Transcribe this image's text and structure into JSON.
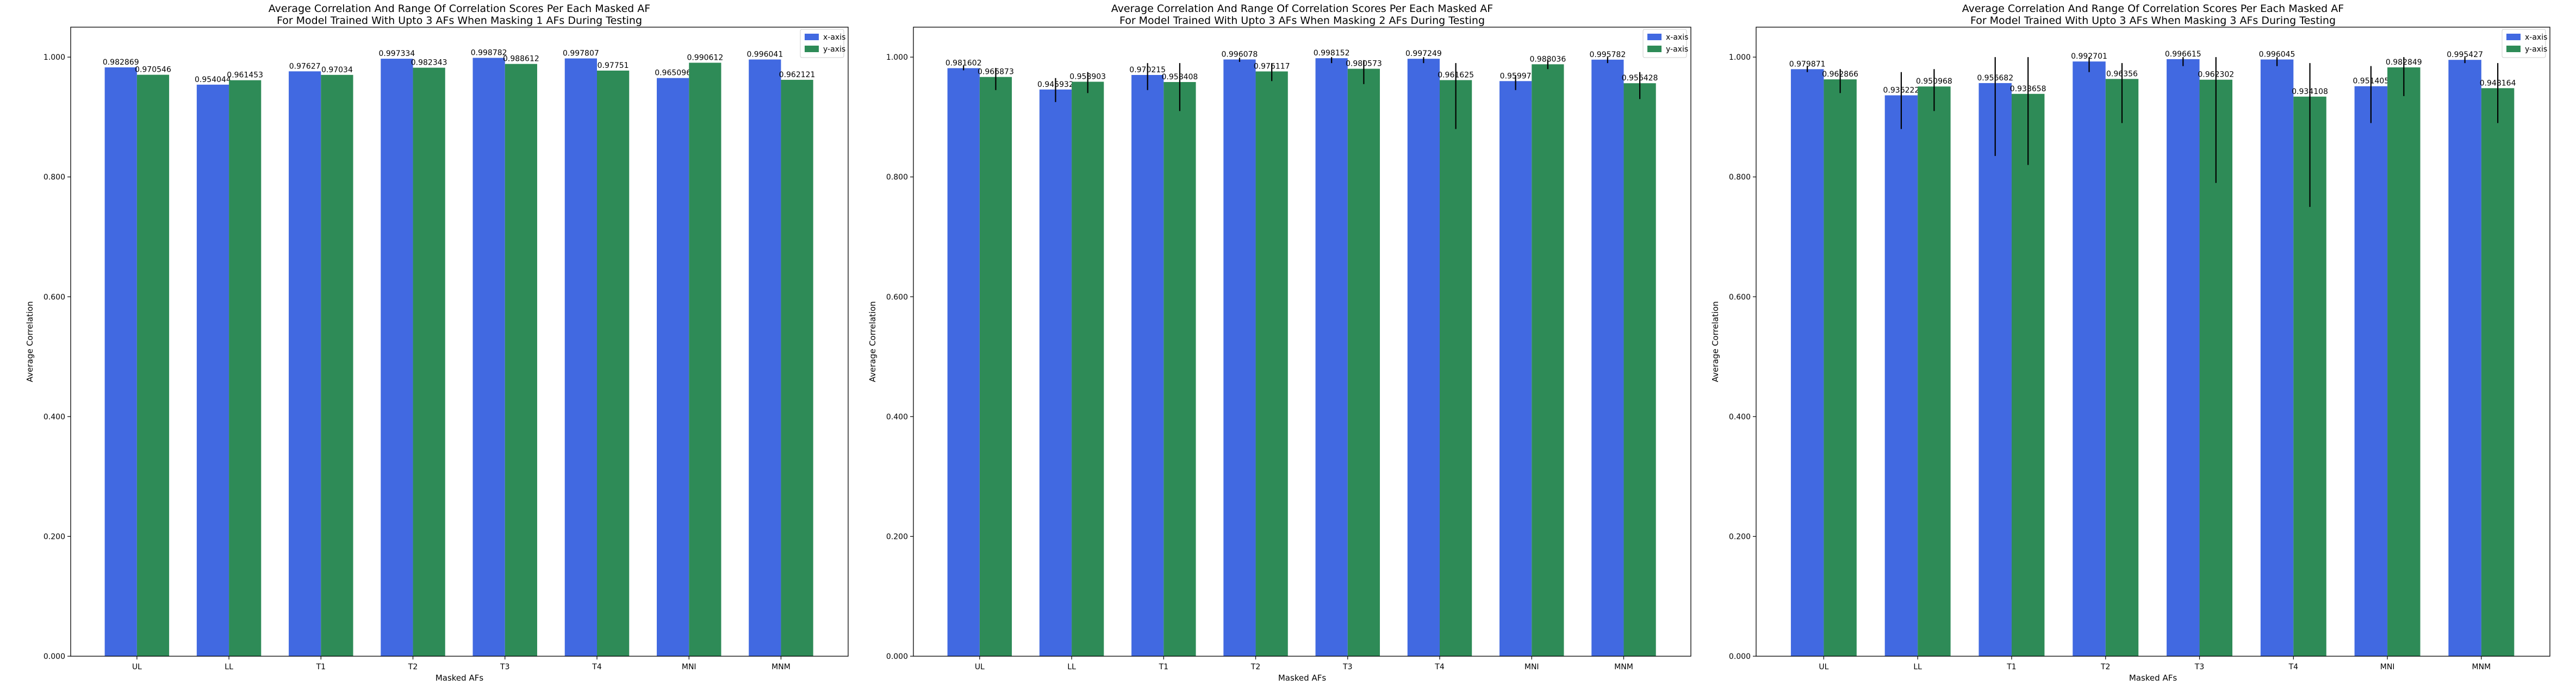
{
  "colors": {
    "x_axis": "#4169E1",
    "y_axis": "#2E8B57",
    "error_bar": "#000000"
  },
  "chart_data": [
    {
      "type": "bar",
      "title": "Average Correlation And Range Of Correlation Scores Per Each Masked AF",
      "subtitle": "For Model Trained With Upto 3 AFs When Masking 1 AFs During Testing",
      "xlabel": "Masked AFs",
      "ylabel": "Average Correlation",
      "categories": [
        "UL",
        "LL",
        "T1",
        "T2",
        "T3",
        "T4",
        "MNI",
        "MNM"
      ],
      "ylim": [
        0,
        1.05
      ],
      "yticks": [
        "0.000",
        "0.200",
        "0.400",
        "0.600",
        "0.800",
        "1.000"
      ],
      "legend_position": "top-right",
      "grid": false,
      "series": [
        {
          "name": "x-axis",
          "values": [
            0.982869,
            0.954044,
            0.97627,
            0.997334,
            0.998782,
            0.997807,
            0.965096,
            0.996041
          ],
          "labels": [
            "0.982869",
            "0.954044",
            "0.97627",
            "0.997334",
            "0.998782",
            "0.997807",
            "0.965096",
            "0.996041"
          ],
          "error_low": [
            0.982869,
            0.954044,
            0.97627,
            0.997334,
            0.998782,
            0.997807,
            0.965096,
            0.996041
          ],
          "error_high": [
            0.982869,
            0.954044,
            0.97627,
            0.997334,
            0.998782,
            0.997807,
            0.965096,
            0.996041
          ]
        },
        {
          "name": "y-axis",
          "values": [
            0.970546,
            0.961453,
            0.97034,
            0.982343,
            0.988612,
            0.97751,
            0.990612,
            0.962121
          ],
          "labels": [
            "0.970546",
            "0.961453",
            "0.97034",
            "0.982343",
            "0.988612",
            "0.97751",
            "0.990612",
            "0.962121"
          ],
          "error_low": [
            0.970546,
            0.961453,
            0.97034,
            0.982343,
            0.988612,
            0.97751,
            0.990612,
            0.962121
          ],
          "error_high": [
            0.970546,
            0.961453,
            0.97034,
            0.982343,
            0.988612,
            0.97751,
            0.990612,
            0.962121
          ]
        }
      ]
    },
    {
      "type": "bar",
      "title": "Average Correlation And Range Of Correlation Scores Per Each Masked AF",
      "subtitle": "For Model Trained With Upto 3 AFs When Masking 2 AFs During Testing",
      "xlabel": "Masked AFs",
      "ylabel": "Average Correlation",
      "categories": [
        "UL",
        "LL",
        "T1",
        "T2",
        "T3",
        "T4",
        "MNI",
        "MNM"
      ],
      "ylim": [
        0,
        1.05
      ],
      "yticks": [
        "0.000",
        "0.200",
        "0.400",
        "0.600",
        "0.800",
        "1.000"
      ],
      "legend_position": "top-right",
      "grid": false,
      "series": [
        {
          "name": "x-axis",
          "values": [
            0.981602,
            0.945932,
            0.970215,
            0.996078,
            0.998152,
            0.997249,
            0.95997,
            0.995782
          ],
          "labels": [
            "0.981602",
            "0.945932",
            "0.970215",
            "0.996078",
            "0.998152",
            "0.997249",
            "0.95997",
            "0.995782"
          ],
          "error_low": [
            0.978,
            0.925,
            0.945,
            0.992,
            0.99,
            0.99,
            0.945,
            0.99
          ],
          "error_high": [
            0.986,
            0.965,
            0.99,
            0.999,
            1.0,
            1.0,
            0.97,
            1.0
          ]
        },
        {
          "name": "y-axis",
          "values": [
            0.966873,
            0.958903,
            0.958408,
            0.976117,
            0.980573,
            0.961625,
            0.988036,
            0.956428
          ],
          "labels": [
            "0.966873",
            "0.958903",
            "0.958408",
            "0.976117",
            "0.980573",
            "0.961625",
            "0.988036",
            "0.956428"
          ],
          "error_low": [
            0.945,
            0.94,
            0.91,
            0.96,
            0.955,
            0.88,
            0.98,
            0.93
          ],
          "error_high": [
            0.982,
            0.975,
            0.99,
            0.99,
            0.995,
            0.99,
            0.995,
            0.975
          ]
        }
      ]
    },
    {
      "type": "bar",
      "title": "Average Correlation And Range Of Correlation Scores Per Each Masked AF",
      "subtitle": "For Model Trained With Upto 3 AFs When Masking 3 AFs During Testing",
      "xlabel": "Masked AFs",
      "ylabel": "Average Correlation",
      "categories": [
        "UL",
        "LL",
        "T1",
        "T2",
        "T3",
        "T4",
        "MNI",
        "MNM"
      ],
      "ylim": [
        0,
        1.05
      ],
      "yticks": [
        "0.000",
        "0.200",
        "0.400",
        "0.600",
        "0.800",
        "1.000"
      ],
      "legend_position": "top-right",
      "grid": false,
      "series": [
        {
          "name": "x-axis",
          "values": [
            0.979871,
            0.936222,
            0.956682,
            0.992701,
            0.996615,
            0.996045,
            0.951405,
            0.995427
          ],
          "labels": [
            "0.979871",
            "0.936222",
            "0.956682",
            "0.992701",
            "0.996615",
            "0.996045",
            "0.951405",
            "0.995427"
          ],
          "error_low": [
            0.975,
            0.88,
            0.835,
            0.975,
            0.985,
            0.985,
            0.89,
            0.99
          ],
          "error_high": [
            0.985,
            0.975,
            1.0,
            1.0,
            1.0,
            1.0,
            0.985,
            1.0
          ]
        },
        {
          "name": "y-axis",
          "values": [
            0.962866,
            0.950968,
            0.938658,
            0.96356,
            0.962302,
            0.934108,
            0.982849,
            0.948164
          ],
          "labels": [
            "0.962866",
            "0.950968",
            "0.938658",
            "0.96356",
            "0.962302",
            "0.934108",
            "0.982849",
            "0.948164"
          ],
          "error_low": [
            0.94,
            0.91,
            0.82,
            0.89,
            0.79,
            0.75,
            0.935,
            0.89
          ],
          "error_high": [
            0.98,
            0.98,
            1.0,
            0.99,
            1.0,
            0.99,
            1.0,
            0.99
          ]
        }
      ]
    }
  ]
}
